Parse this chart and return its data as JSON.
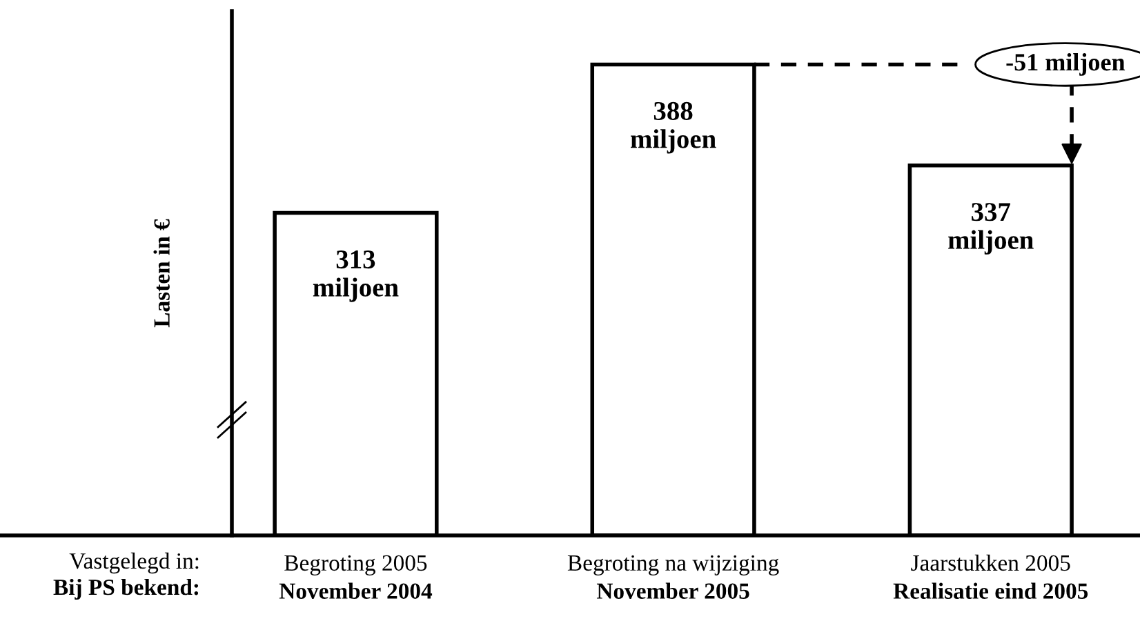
{
  "chart_data": {
    "type": "bar",
    "ylabel": "Lasten in €",
    "categories": [
      "Begroting 2005",
      "Begroting na wijziging",
      "Jaarstukken 2005"
    ],
    "values": [
      313,
      388,
      337
    ],
    "color": "#ffffff",
    "value_labels": [
      "313\nmiljoen",
      "388\nmiljoen",
      "337\nmiljoen"
    ],
    "ylim": [
      150,
      415
    ],
    "grid": false,
    "legend": false,
    "annotations": [
      "Vastgelegd in:",
      "Bij PS bekend:",
      "November 2004",
      "November 2005",
      "Realisatie eind 2005",
      "-51 miljoen"
    ]
  }
}
